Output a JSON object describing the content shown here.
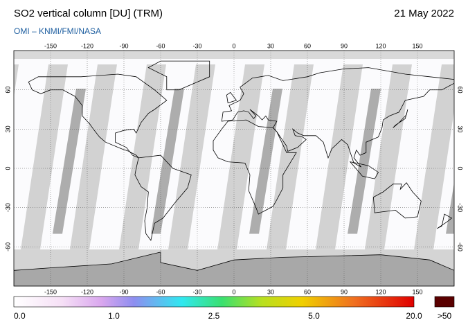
{
  "header": {
    "title": "SO2 vertical column [DU] (TRM)",
    "subtitle": "OMI  –  KNMI/FMI/NASA",
    "date": "21 May 2022"
  },
  "map": {
    "lon_range": [
      -180,
      180
    ],
    "lat_range": [
      -90,
      90
    ],
    "lon_ticks": [
      -150,
      -120,
      -90,
      -60,
      -30,
      0,
      30,
      60,
      90,
      120,
      150
    ],
    "lat_ticks": [
      60,
      30,
      0,
      -30,
      -60
    ]
  },
  "colorbar": {
    "labels": [
      "0.0",
      "1.0",
      "2.5",
      "5.0",
      "20.0"
    ],
    "overflow_label": ">50"
  }
}
